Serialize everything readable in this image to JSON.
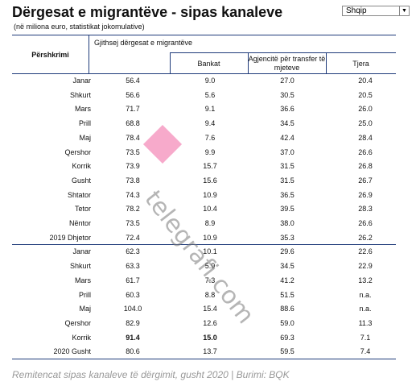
{
  "header": {
    "title": "Dërgesat e migrantëve - sipas kanaleve",
    "subtitle": "(në miliona euro, statistikat jokomulative)",
    "language": "Shqip"
  },
  "table": {
    "columns": {
      "label": "Përshkrimi",
      "group": "Gjithsej dërgesat e migrantëve",
      "sub": [
        "Bankat",
        "Agjencitë për transfer të mjeteve",
        "Tjera"
      ]
    },
    "rows": [
      [
        "Janar",
        "56.4",
        "9.0",
        "27.0",
        "20.4"
      ],
      [
        "Shkurt",
        "56.6",
        "5.6",
        "30.5",
        "20.5"
      ],
      [
        "Mars",
        "71.7",
        "9.1",
        "36.6",
        "26.0"
      ],
      [
        "Prill",
        "68.8",
        "9.4",
        "34.5",
        "25.0"
      ],
      [
        "Maj",
        "78.4",
        "7.6",
        "42.4",
        "28.4"
      ],
      [
        "Qershor",
        "73.5",
        "9.9",
        "37.0",
        "26.6"
      ],
      [
        "Korrik",
        "73.9",
        "15.7",
        "31.5",
        "26.8"
      ],
      [
        "Gusht",
        "73.8",
        "15.6",
        "31.5",
        "26.7"
      ],
      [
        "Shtator",
        "74.3",
        "10.9",
        "36.5",
        "26.9"
      ],
      [
        "Tetor",
        "78.2",
        "10.4",
        "39.5",
        "28.3"
      ],
      [
        "Nëntor",
        "73.5",
        "8.9",
        "38.0",
        "26.6"
      ],
      [
        "2019 Dhjetor",
        "72.4",
        "10.9",
        "35.3",
        "26.2"
      ],
      [
        "Janar",
        "62.3",
        "10.1",
        "29.6",
        "22.6"
      ],
      [
        "Shkurt",
        "63.3",
        "5.9",
        "34.5",
        "22.9"
      ],
      [
        "Mars",
        "61.7",
        "7.3",
        "41.2",
        "13.2"
      ],
      [
        "Prill",
        "60.3",
        "8.8",
        "51.5",
        "n.a."
      ],
      [
        "Maj",
        "104.0",
        "15.4",
        "88.6",
        "n.a."
      ],
      [
        "Qershor",
        "82.9",
        "12.6",
        "59.0",
        "11.3"
      ],
      [
        "Korrik",
        "91.4",
        "15.0",
        "69.3",
        "7.1"
      ],
      [
        "2020 Gusht",
        "80.6",
        "13.7",
        "59.5",
        "7.4"
      ]
    ]
  },
  "watermark": "telegrafi.com",
  "caption": "Remitencat sipas kanaleve të dërgimit, gusht 2020 | Burimi: BQK"
}
